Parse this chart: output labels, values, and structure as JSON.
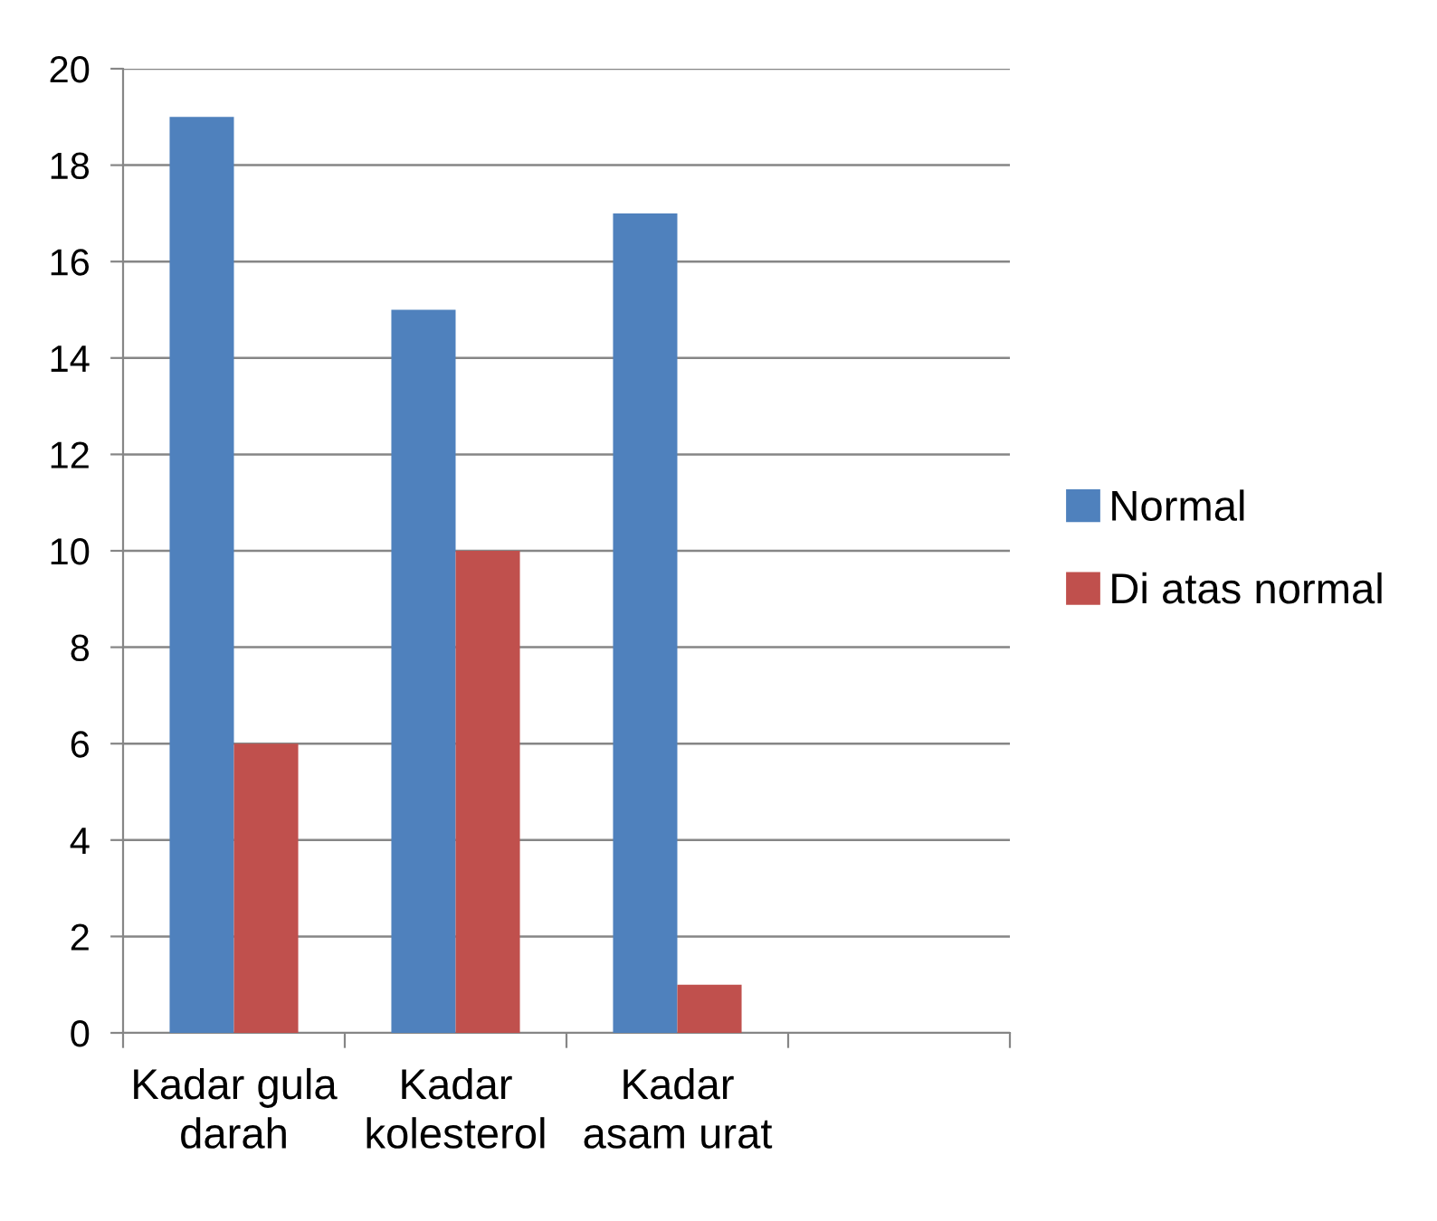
{
  "chart_data": {
    "type": "bar",
    "categories": [
      "Kadar gula\ndarah",
      "Kadar\nkolesterol",
      "Kadar\nasam urat",
      null
    ],
    "series": [
      {
        "name": "Normal",
        "color": "#4f81bd",
        "values": [
          19,
          15,
          17,
          null
        ]
      },
      {
        "name": "Di atas normal",
        "color": "#c0504d",
        "values": [
          6,
          10,
          1,
          null
        ]
      }
    ],
    "ylim": [
      0,
      20
    ],
    "yticks": [
      0,
      2,
      4,
      6,
      8,
      10,
      12,
      14,
      16,
      18,
      20
    ],
    "grid": "y",
    "legend": "right"
  }
}
